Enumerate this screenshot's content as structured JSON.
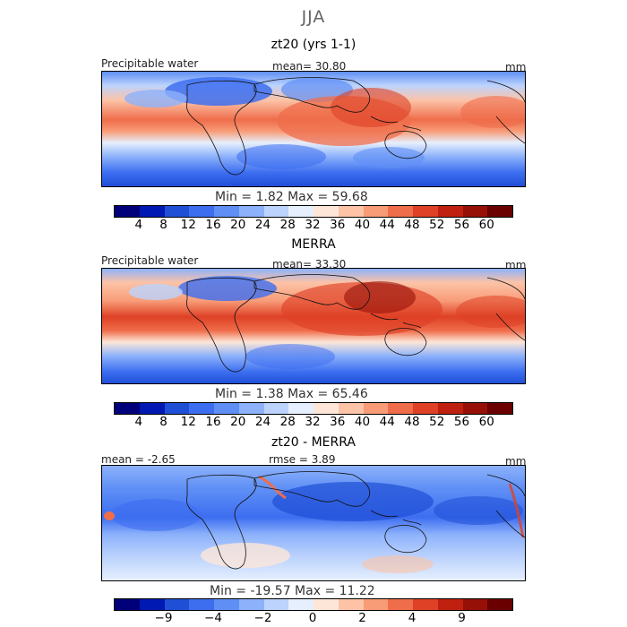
{
  "figure_title": "JJA",
  "units": "mm",
  "variable": "Precipitable water",
  "chart_data": [
    {
      "type": "heatmap",
      "title": "zt20 (yrs 1-1)",
      "field": "Precipitable water",
      "units": "mm",
      "mean_label": "mean=  30.80",
      "min_max_label": "Min =    1.82  Max =  59.68",
      "mean": 30.8,
      "min": 1.82,
      "max": 59.68,
      "colorbar": {
        "levels": [
          4,
          8,
          12,
          16,
          20,
          24,
          28,
          32,
          36,
          40,
          44,
          48,
          52,
          56,
          60
        ],
        "colors": [
          "#00007a",
          "#0019b2",
          "#1f4fd6",
          "#3d6ef0",
          "#5f8ff5",
          "#8db2fb",
          "#bcd3fd",
          "#e6effd",
          "#fde6d8",
          "#fcc3a7",
          "#f89c78",
          "#ef6d4b",
          "#de4126",
          "#c0200f",
          "#961008",
          "#6a0000"
        ]
      }
    },
    {
      "type": "heatmap",
      "title": "MERRA",
      "field": "Precipitable water",
      "units": "mm",
      "mean_label": "mean=  33.30",
      "min_max_label": "Min =    1.38  Max =  65.46",
      "mean": 33.3,
      "min": 1.38,
      "max": 65.46,
      "colorbar": {
        "levels": [
          4,
          8,
          12,
          16,
          20,
          24,
          28,
          32,
          36,
          40,
          44,
          48,
          52,
          56,
          60
        ],
        "colors": [
          "#00007a",
          "#0019b2",
          "#1f4fd6",
          "#3d6ef0",
          "#5f8ff5",
          "#8db2fb",
          "#bcd3fd",
          "#e6effd",
          "#fde6d8",
          "#fcc3a7",
          "#f89c78",
          "#ef6d4b",
          "#de4126",
          "#c0200f",
          "#961008",
          "#6a0000"
        ]
      }
    },
    {
      "type": "heatmap",
      "title": "zt20 - MERRA",
      "units": "mm",
      "mean_label": "mean =  -2.65",
      "rmse_label": "rmse =   3.89",
      "min_max_label": "Min = -19.57  Max =  11.22",
      "mean": -2.65,
      "rmse": 3.89,
      "min": -19.57,
      "max": 11.22,
      "colorbar": {
        "tick_labels": [
          "-9",
          "-4",
          "-2",
          "0",
          "2",
          "4",
          "9"
        ],
        "colors": [
          "#00007a",
          "#0019b2",
          "#1f4fd6",
          "#3d6ef0",
          "#5f8ff5",
          "#8db2fb",
          "#bcd3fd",
          "#e6effd",
          "#fde6d8",
          "#fcc3a7",
          "#f89c78",
          "#ef6d4b",
          "#de4126",
          "#c0200f",
          "#961008",
          "#6a0000"
        ]
      }
    }
  ]
}
